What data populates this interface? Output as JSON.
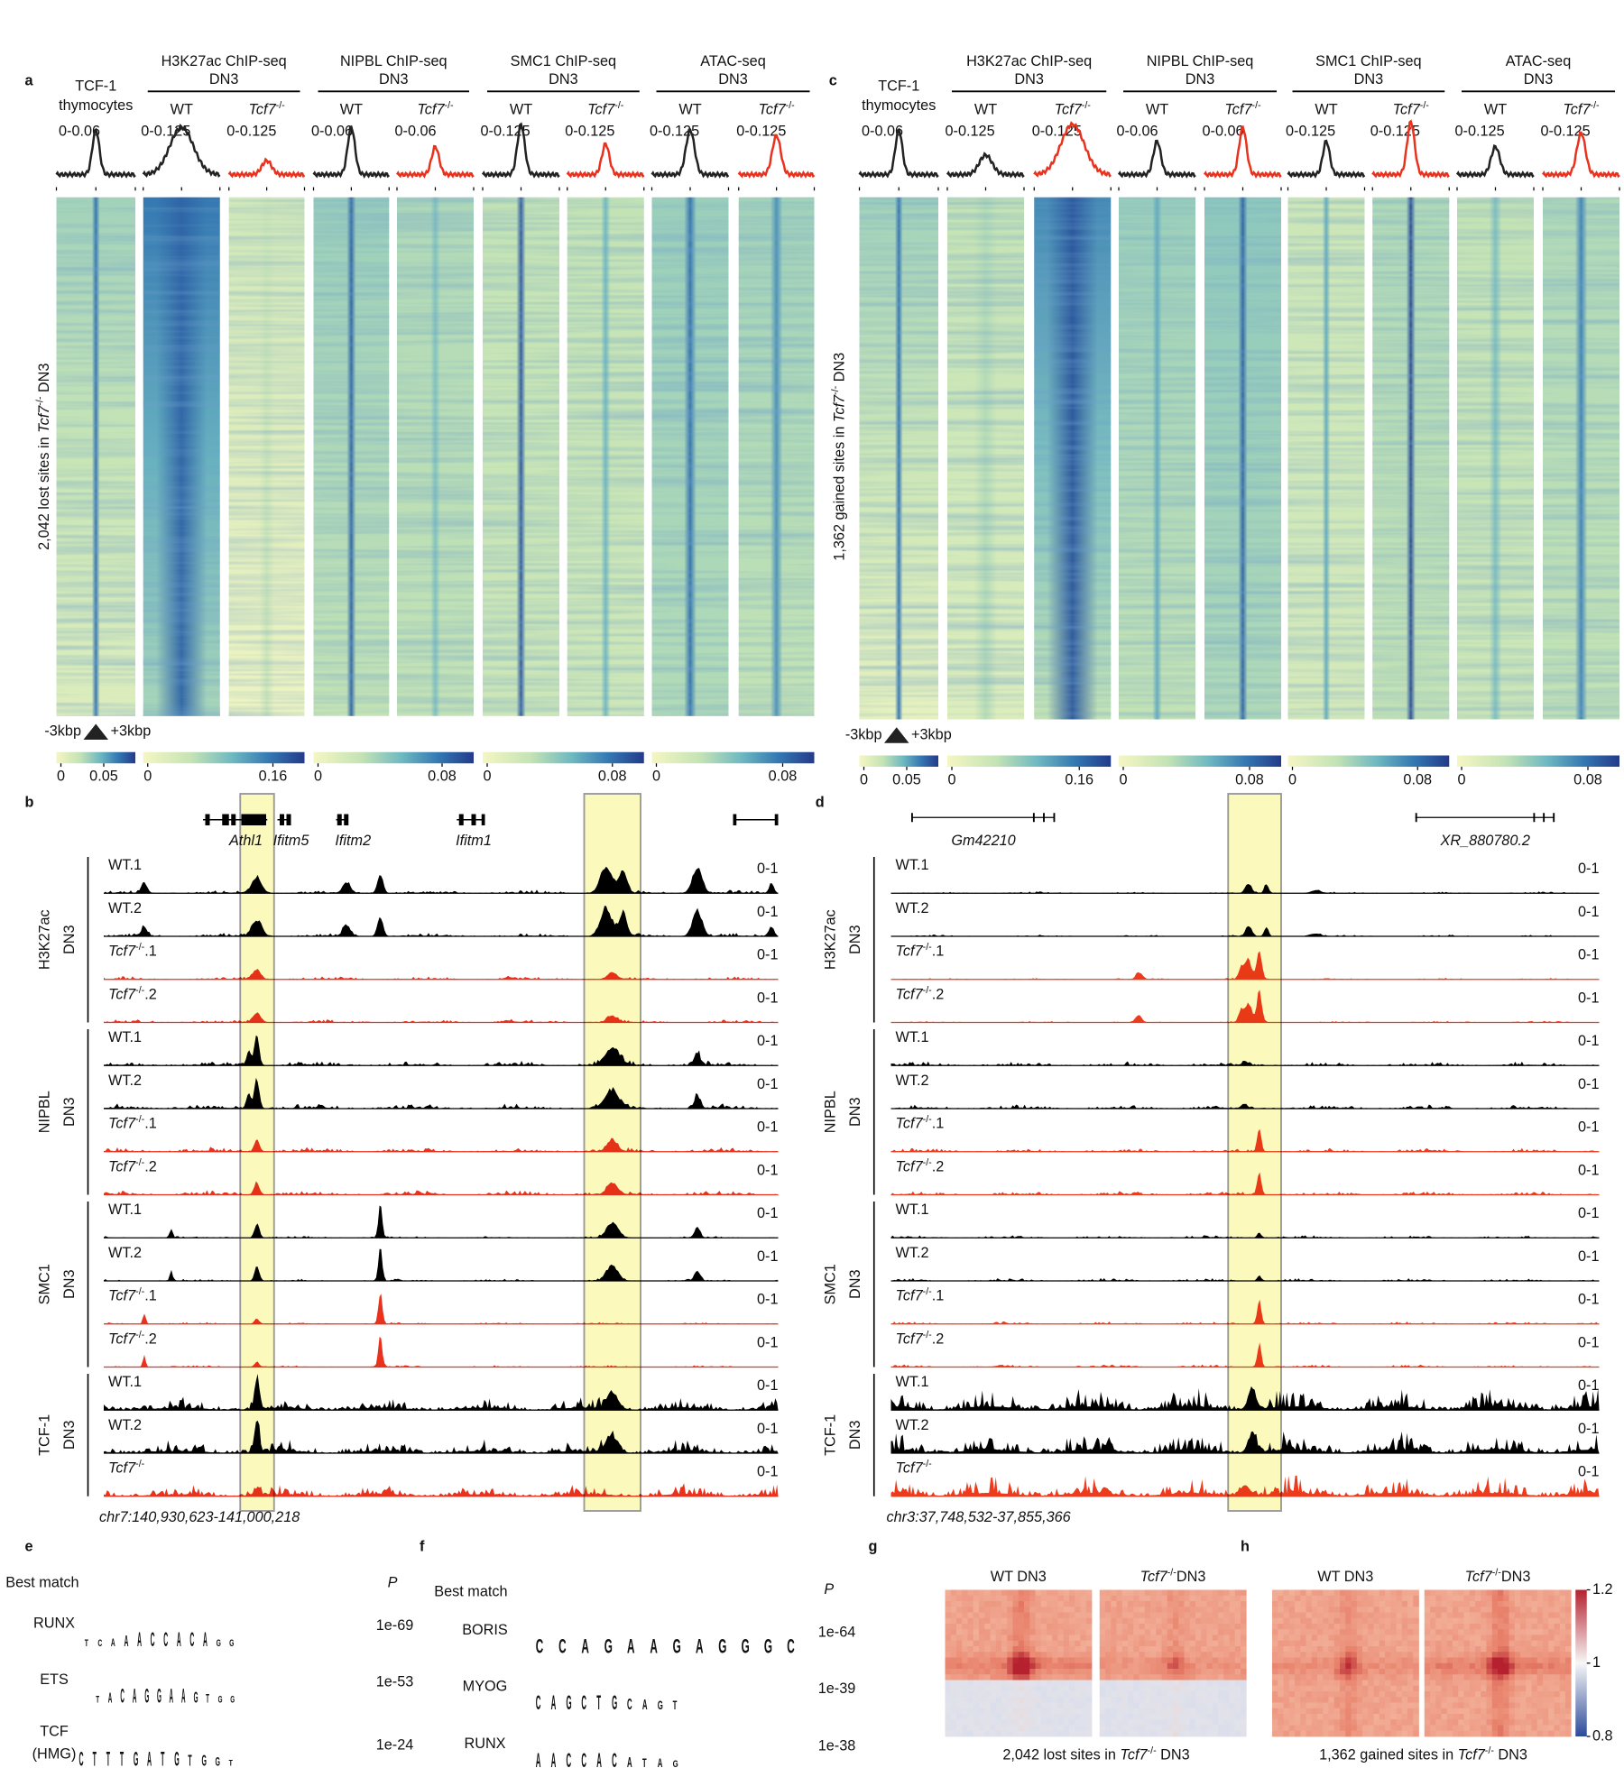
{
  "panel_a": {
    "label": "a",
    "reference": {
      "title": [
        "TCF-1",
        "thymocytes"
      ],
      "range": "0-0.06"
    },
    "groups": [
      {
        "title": [
          "H3K27ac ChIP-seq",
          "DN3"
        ],
        "samples": [
          {
            "name": "WT",
            "range": "0-0.125"
          },
          {
            "gene": "Tcf7",
            "sup": "-/-",
            "range": "0-0.125"
          }
        ]
      },
      {
        "title": [
          "NIPBL ChIP-seq",
          "DN3"
        ],
        "samples": [
          {
            "name": "WT",
            "range": "0-0.06"
          },
          {
            "gene": "Tcf7",
            "sup": "-/-",
            "range": "0-0.06"
          }
        ]
      },
      {
        "title": [
          "SMC1 ChIP-seq",
          "DN3"
        ],
        "samples": [
          {
            "name": "WT",
            "range": "0-0.125"
          },
          {
            "gene": "Tcf7",
            "sup": "-/-",
            "range": "0-0.125"
          }
        ]
      },
      {
        "title": [
          "ATAC-seq",
          "DN3"
        ],
        "samples": [
          {
            "name": "WT",
            "range": "0-0.125"
          },
          {
            "gene": "Tcf7",
            "sup": "-/-",
            "range": "0-0.125"
          }
        ]
      }
    ],
    "side_label": {
      "pre": "2,042 lost sites in ",
      "gene": "Tcf7",
      "sup": "-/-",
      "post": " DN3"
    },
    "scale": {
      "left": "-3kbp",
      "right": "+3kbp"
    },
    "colorbars": [
      [
        0,
        0.05
      ],
      [
        0,
        0.16
      ],
      [
        0,
        0.08
      ],
      [
        0,
        0.08
      ],
      [
        0,
        0.08
      ]
    ]
  },
  "panel_c": {
    "label": "c",
    "reference": {
      "title": [
        "TCF-1",
        "thymocytes"
      ],
      "range": "0-0.06"
    },
    "groups": [
      {
        "title": [
          "H3K27ac ChIP-seq",
          "DN3"
        ],
        "samples": [
          {
            "name": "WT",
            "range": "0-0.125"
          },
          {
            "gene": "Tcf7",
            "sup": "-/-",
            "range": "0-0.125"
          }
        ]
      },
      {
        "title": [
          "NIPBL ChIP-seq",
          "DN3"
        ],
        "samples": [
          {
            "name": "WT",
            "range": "0-0.06"
          },
          {
            "gene": "Tcf7",
            "sup": "-/-",
            "range": "0-0.06"
          }
        ]
      },
      {
        "title": [
          "SMC1 ChIP-seq",
          "DN3"
        ],
        "samples": [
          {
            "name": "WT",
            "range": "0-0.125"
          },
          {
            "gene": "Tcf7",
            "sup": "-/-",
            "range": "0-0.125"
          }
        ]
      },
      {
        "title": [
          "ATAC-seq",
          "DN3"
        ],
        "samples": [
          {
            "name": "WT",
            "range": "0-0.125"
          },
          {
            "gene": "Tcf7",
            "sup": "-/-",
            "range": "0-0.125"
          }
        ]
      }
    ],
    "side_label": {
      "pre": "1,362 gained sites in ",
      "gene": "Tcf7",
      "sup": "-/-",
      "post": " DN3"
    },
    "scale": {
      "left": "-3kbp",
      "right": "+3kbp"
    },
    "colorbars": [
      [
        0,
        0.05
      ],
      [
        0,
        0.16
      ],
      [
        0,
        0.08
      ],
      [
        0,
        0.08
      ],
      [
        0,
        0.08
      ]
    ]
  },
  "panel_b": {
    "label": "b",
    "genes": [
      "Athl1",
      "Ifitm5",
      "Ifitm2",
      "Ifitm1"
    ],
    "groups": [
      {
        "name": [
          "H3K27ac",
          "DN3"
        ],
        "tracks": [
          {
            "name": "WT.1",
            "range": "0-1"
          },
          {
            "name": "WT.2",
            "range": "0-1"
          },
          {
            "gene": "Tcf7",
            "sup": "-/-",
            "suffix": ".1",
            "range": "0-1"
          },
          {
            "gene": "Tcf7",
            "sup": "-/-",
            "suffix": ".2",
            "range": "0-1"
          }
        ]
      },
      {
        "name": [
          "NIPBL",
          "DN3"
        ],
        "tracks": [
          {
            "name": "WT.1",
            "range": "0-1"
          },
          {
            "name": "WT.2",
            "range": "0-1"
          },
          {
            "gene": "Tcf7",
            "sup": "-/-",
            "suffix": ".1",
            "range": "0-1"
          },
          {
            "gene": "Tcf7",
            "sup": "-/-",
            "suffix": ".2",
            "range": "0-1"
          }
        ]
      },
      {
        "name": [
          "SMC1",
          "DN3"
        ],
        "tracks": [
          {
            "name": "WT.1",
            "range": "0-1"
          },
          {
            "name": "WT.2",
            "range": "0-1"
          },
          {
            "gene": "Tcf7",
            "sup": "-/-",
            "suffix": ".1",
            "range": "0-1"
          },
          {
            "gene": "Tcf7",
            "sup": "-/-",
            "suffix": ".2",
            "range": "0-1"
          }
        ]
      },
      {
        "name": [
          "TCF-1",
          "DN3"
        ],
        "tracks": [
          {
            "name": "WT.1",
            "range": "0-1"
          },
          {
            "name": "WT.2",
            "range": "0-1"
          },
          {
            "gene": "Tcf7",
            "sup": "-/-",
            "range": "0-1"
          }
        ]
      }
    ],
    "locus": "chr7:140,930,623-141,000,218"
  },
  "panel_d": {
    "label": "d",
    "genes": [
      "Gm42210",
      "XR_880780.2"
    ],
    "groups": [
      {
        "name": [
          "H3K27ac",
          "DN3"
        ],
        "tracks": [
          {
            "name": "WT.1",
            "range": "0-1"
          },
          {
            "name": "WT.2",
            "range": "0-1"
          },
          {
            "gene": "Tcf7",
            "sup": "-/-",
            "suffix": ".1",
            "range": "0-1"
          },
          {
            "gene": "Tcf7",
            "sup": "-/-",
            "suffix": ".2",
            "range": "0-1"
          }
        ]
      },
      {
        "name": [
          "NIPBL",
          "DN3"
        ],
        "tracks": [
          {
            "name": "WT.1",
            "range": "0-1"
          },
          {
            "name": "WT.2",
            "range": "0-1"
          },
          {
            "gene": "Tcf7",
            "sup": "-/-",
            "suffix": ".1",
            "range": "0-1"
          },
          {
            "gene": "Tcf7",
            "sup": "-/-",
            "suffix": ".2",
            "range": "0-1"
          }
        ]
      },
      {
        "name": [
          "SMC1",
          "DN3"
        ],
        "tracks": [
          {
            "name": "WT.1",
            "range": "0-1"
          },
          {
            "name": "WT.2",
            "range": "0-1"
          },
          {
            "gene": "Tcf7",
            "sup": "-/-",
            "suffix": ".1",
            "range": "0-1"
          },
          {
            "gene": "Tcf7",
            "sup": "-/-",
            "suffix": ".2",
            "range": "0-1"
          }
        ]
      },
      {
        "name": [
          "TCF-1",
          "DN3"
        ],
        "tracks": [
          {
            "name": "WT.1",
            "range": "0-1"
          },
          {
            "name": "WT.2",
            "range": "0-1"
          },
          {
            "gene": "Tcf7",
            "sup": "-/-",
            "range": "0-1"
          }
        ]
      }
    ],
    "locus": "chr3:37,748,532-37,855,366"
  },
  "panel_e": {
    "label": "e",
    "header": "Best match",
    "p_header": "P",
    "motifs": [
      {
        "name": [
          "RUNX"
        ],
        "letters": [
          "T",
          "C",
          "A",
          "A",
          "A",
          "C",
          "C",
          "A",
          "C",
          "A",
          "G",
          "G"
        ],
        "p": "1e-69"
      },
      {
        "name": [
          "ETS"
        ],
        "letters": [
          "T",
          "A",
          "C",
          "A",
          "G",
          "G",
          "A",
          "A",
          "G",
          "T",
          "G",
          "G"
        ],
        "p": "1e-53"
      },
      {
        "name": [
          "TCF",
          "(HMG)"
        ],
        "letters": [
          "C",
          "T",
          "T",
          "T",
          "G",
          "A",
          "T",
          "G",
          "T",
          "G",
          "G",
          "T"
        ],
        "p": "1e-24"
      }
    ]
  },
  "panel_f": {
    "label": "f",
    "header": "Best match",
    "p_header": "P",
    "motifs": [
      {
        "name": [
          "BORIS"
        ],
        "letters": [
          "C",
          "C",
          "A",
          "G",
          "A",
          "A",
          "G",
          "A",
          "G",
          "G",
          "G",
          "C"
        ],
        "p": "1e-64"
      },
      {
        "name": [
          "MYOG"
        ],
        "letters": [
          "C",
          "A",
          "G",
          "C",
          "T",
          "G",
          "C",
          "A",
          "G",
          "T"
        ],
        "p": "1e-39"
      },
      {
        "name": [
          "RUNX"
        ],
        "letters": [
          "A",
          "A",
          "C",
          "C",
          "A",
          "C",
          "A",
          "T",
          "A",
          "G"
        ],
        "p": "1e-38"
      }
    ]
  },
  "panel_g": {
    "label": "g",
    "columns": [
      {
        "name": "WT DN3"
      },
      {
        "gene": "Tcf7",
        "sup": "-/-",
        "post": "DN3"
      }
    ],
    "caption": {
      "pre": "2,042 lost sites in ",
      "gene": "Tcf7",
      "sup": "-/-",
      "post": " DN3"
    }
  },
  "panel_h": {
    "label": "h",
    "columns": [
      {
        "name": "WT DN3"
      },
      {
        "gene": "Tcf7",
        "sup": "-/-",
        "post": "DN3"
      }
    ],
    "caption": {
      "pre": "1,362 gained sites in ",
      "gene": "Tcf7",
      "sup": "-/-",
      "post": " DN3"
    },
    "colorbar": [
      1.2,
      1,
      0.8
    ]
  }
}
